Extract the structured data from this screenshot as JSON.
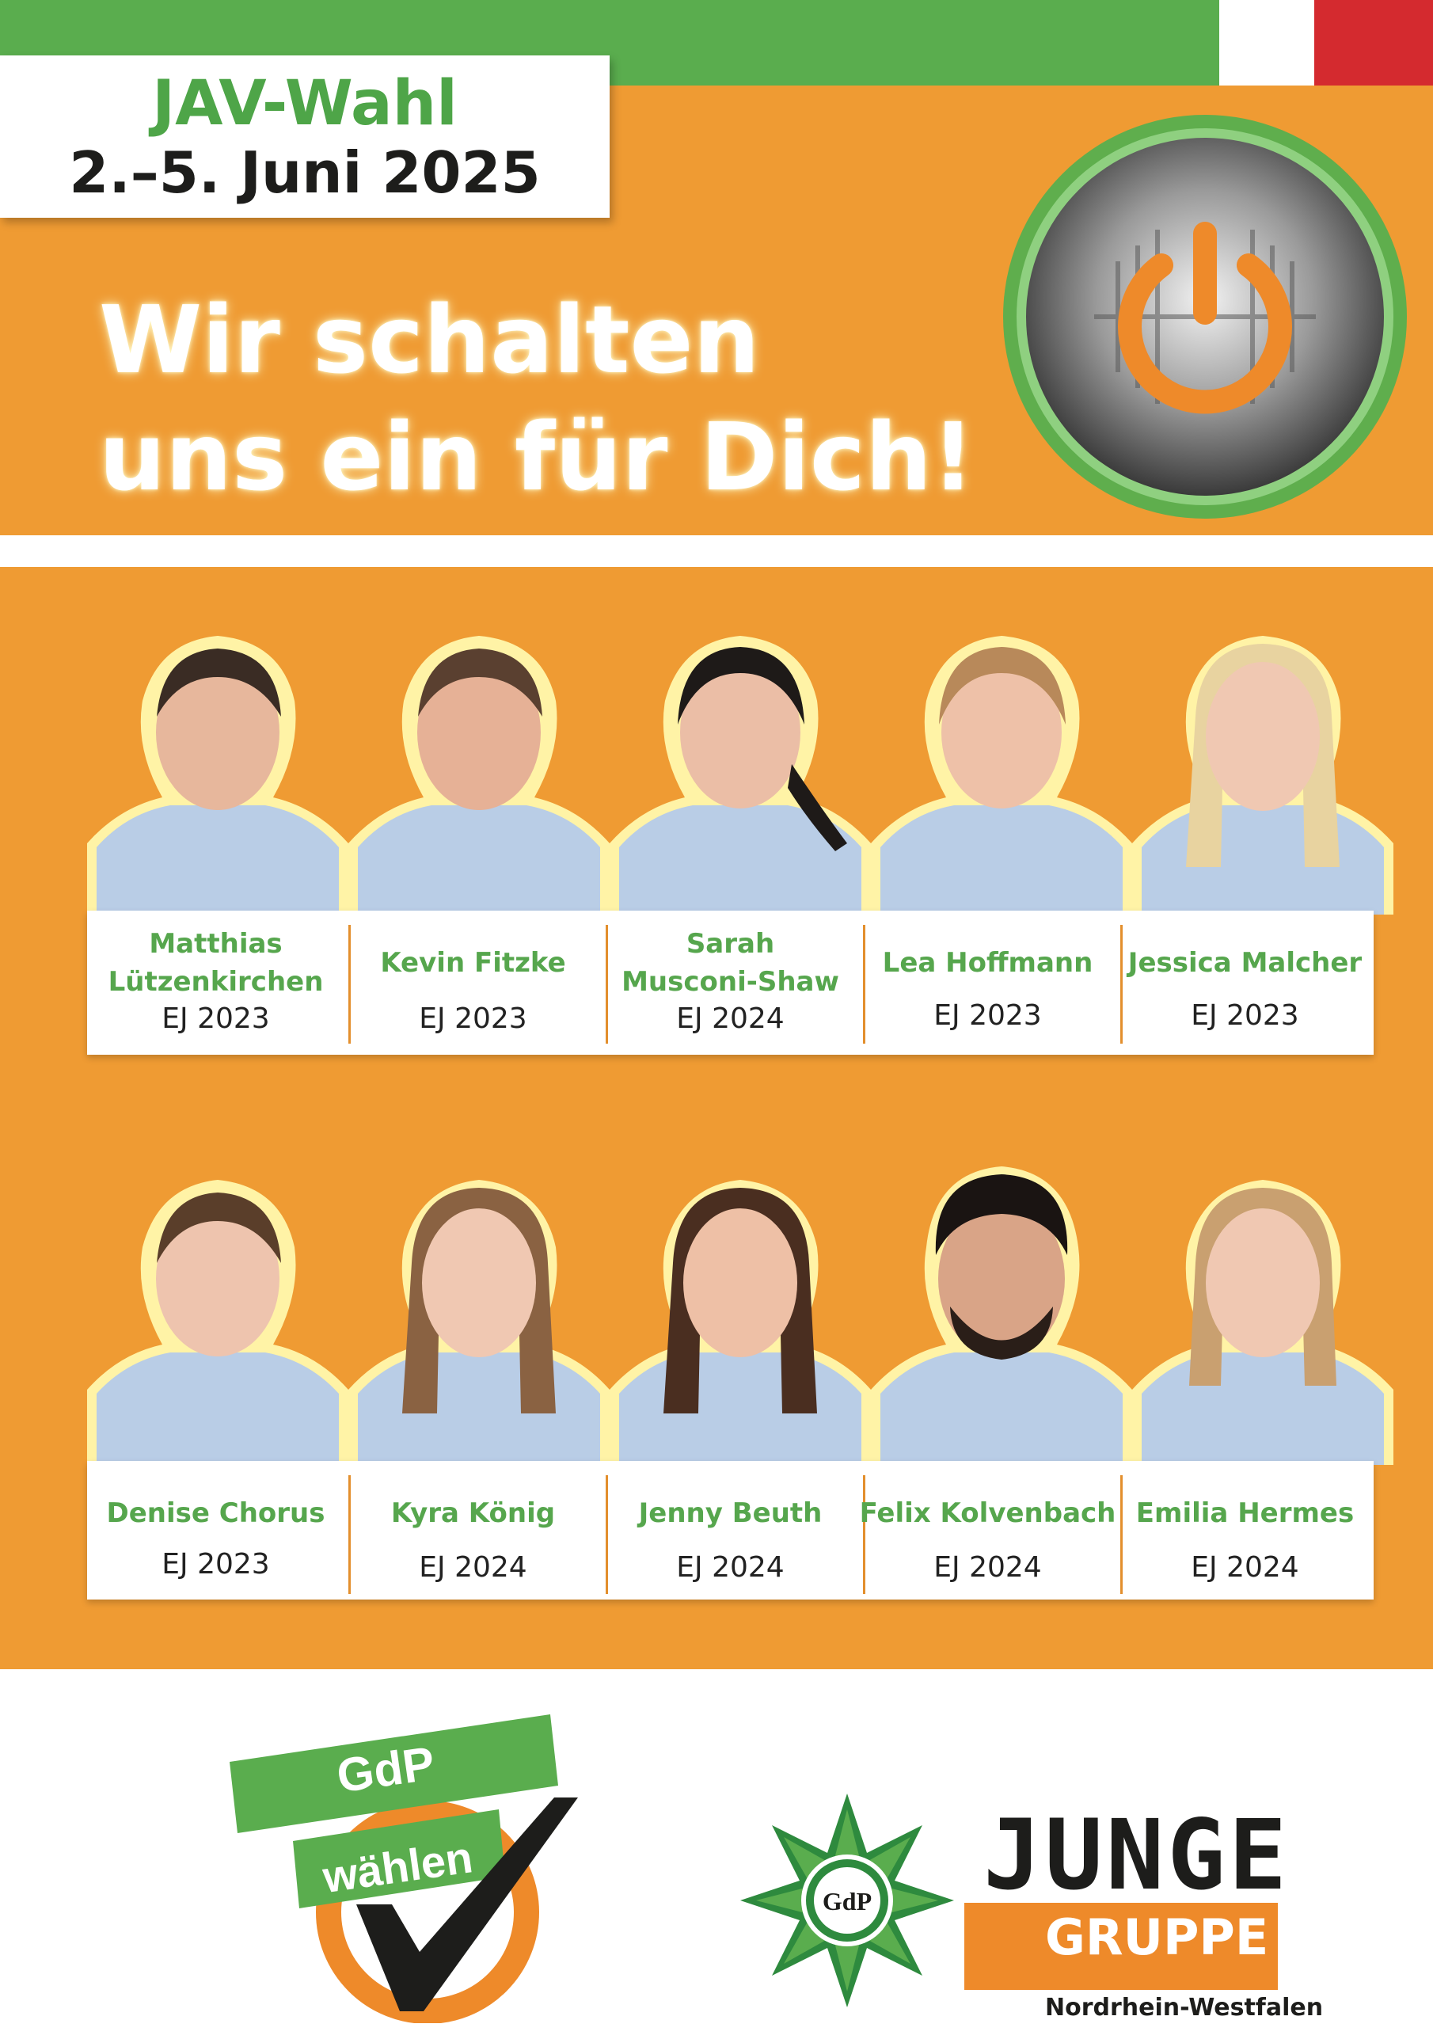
{
  "header": {
    "title": "JAV-Wahl",
    "dates": "2.–5. Juni 2025",
    "slogan_line1": "Wir schalten",
    "slogan_line2": "uns ein für Dich!"
  },
  "candidates_row1": [
    {
      "name_line1": "Matthias",
      "name_line2": "Lützenkirchen",
      "year": "EJ 2023"
    },
    {
      "name_line1": "Kevin Fitzke",
      "name_line2": "",
      "year": "EJ 2023"
    },
    {
      "name_line1": "Sarah",
      "name_line2": "Musconi-Shaw",
      "year": "EJ 2024"
    },
    {
      "name_line1": "Lea Hoffmann",
      "name_line2": "",
      "year": "EJ 2023"
    },
    {
      "name_line1": "Jessica Malcher",
      "name_line2": "",
      "year": "EJ 2023"
    }
  ],
  "candidates_row2": [
    {
      "name_line1": "Denise Chorus",
      "year": "EJ 2023"
    },
    {
      "name_line1": "Kyra König",
      "year": "EJ 2024"
    },
    {
      "name_line1": "Jenny Beuth",
      "year": "EJ 2024"
    },
    {
      "name_line1": "Felix Kolvenbach",
      "year": "EJ 2024"
    },
    {
      "name_line1": "Emilia Hermes",
      "year": "EJ 2024"
    }
  ],
  "footer": {
    "vote_badge_line1": "GdP",
    "vote_badge_line2": "wählen",
    "star_text": "GdP",
    "org_word": "JUNGE",
    "org_word2": "GRUPPE",
    "org_region": "Nordrhein-Westfalen"
  },
  "colors": {
    "orange": "#ef9b33",
    "green": "#5aad4e",
    "red": "#d42a2f"
  }
}
